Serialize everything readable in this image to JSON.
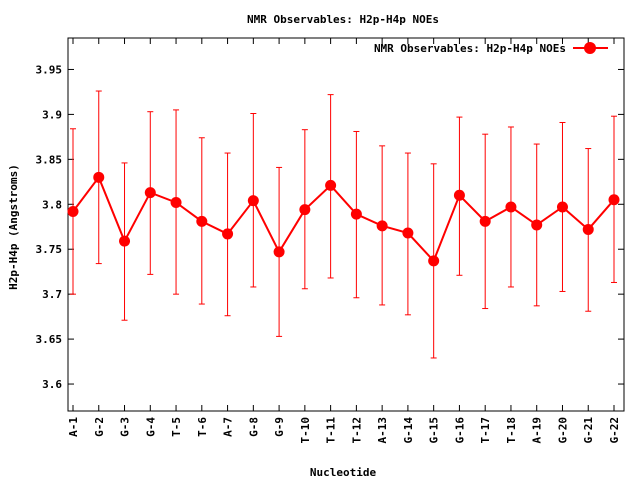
{
  "chart_data": {
    "type": "line",
    "title": "NMR Observables: H2p-H4p NOEs",
    "xlabel": "Nucleotide",
    "ylabel": "H2p-H4p (Angstroms)",
    "ylim": [
      3.57,
      3.985
    ],
    "yticks": [
      3.6,
      3.65,
      3.7,
      3.75,
      3.8,
      3.85,
      3.9,
      3.95
    ],
    "ytick_labels": [
      "3.6",
      "3.65",
      "3.7",
      "3.75",
      "3.8",
      "3.85",
      "3.9",
      "3.95"
    ],
    "grid": false,
    "legend_position": "top-right",
    "categories": [
      "A-1",
      "G-2",
      "G-3",
      "G-4",
      "T-5",
      "T-6",
      "A-7",
      "G-8",
      "G-9",
      "T-10",
      "T-11",
      "T-12",
      "A-13",
      "G-14",
      "G-15",
      "G-16",
      "T-17",
      "T-18",
      "A-19",
      "G-20",
      "G-21",
      "G-22"
    ],
    "series": [
      {
        "name": "NMR Observables: H2p-H4p NOEs",
        "color": "#ff0000",
        "values": [
          3.792,
          3.83,
          3.759,
          3.813,
          3.802,
          3.781,
          3.767,
          3.804,
          3.747,
          3.794,
          3.821,
          3.789,
          3.776,
          3.768,
          3.737,
          3.81,
          3.781,
          3.797,
          3.777,
          3.797,
          3.772,
          3.805
        ],
        "err_low": [
          3.7,
          3.734,
          3.671,
          3.722,
          3.7,
          3.689,
          3.676,
          3.708,
          3.653,
          3.706,
          3.718,
          3.696,
          3.688,
          3.677,
          3.629,
          3.721,
          3.684,
          3.708,
          3.687,
          3.703,
          3.681,
          3.713
        ],
        "err_high": [
          3.884,
          3.926,
          3.846,
          3.903,
          3.905,
          3.874,
          3.857,
          3.901,
          3.841,
          3.883,
          3.922,
          3.881,
          3.865,
          3.857,
          3.845,
          3.897,
          3.878,
          3.886,
          3.867,
          3.891,
          3.862,
          3.898
        ]
      }
    ]
  }
}
